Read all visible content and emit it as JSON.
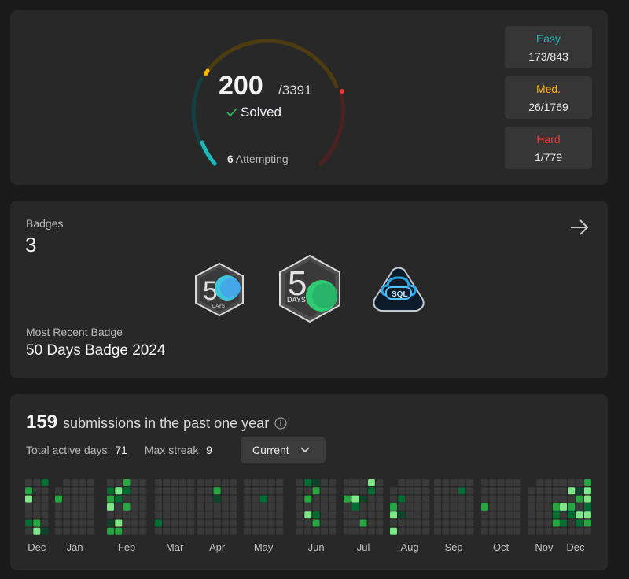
{
  "progress": {
    "solved": "200",
    "total": "/3391",
    "solved_label": "Solved",
    "attempting_count": "6",
    "attempting_label": "Attempting",
    "difficulties": [
      {
        "label": "Easy",
        "value": "173/843",
        "color": "#1cbbba"
      },
      {
        "label": "Med.",
        "value": "26/1769",
        "color": "#ffb700"
      },
      {
        "label": "Hard",
        "value": "1/779",
        "color": "#f63636"
      }
    ]
  },
  "badges": {
    "title": "Badges",
    "count": "3",
    "items": [
      {
        "name": "50-days-badge-small",
        "text": "DAYS"
      },
      {
        "name": "50-days-badge-large",
        "text": "DAYS"
      },
      {
        "name": "sql-badge",
        "text": "SQL"
      }
    ],
    "recent_label": "Most Recent Badge",
    "recent_name": "50 Days Badge 2024"
  },
  "calendar": {
    "submissions": "159",
    "submissions_text": "submissions in the past one year",
    "active_days_label": "Total active days:",
    "active_days": "71",
    "max_streak_label": "Max streak:",
    "max_streak": "9",
    "range_select": "Current",
    "months": [
      "Dec",
      "Jan",
      "Feb",
      "Mar",
      "Apr",
      "May",
      "Jun",
      "Jul",
      "Aug",
      "Sep",
      "Oct",
      "Nov",
      "Dec"
    ],
    "colors": {
      "empty": "#393939",
      "l1": "#0e4429",
      "l2": "#006d32",
      "l3": "#26a641",
      "l4": "#7ee787"
    }
  }
}
